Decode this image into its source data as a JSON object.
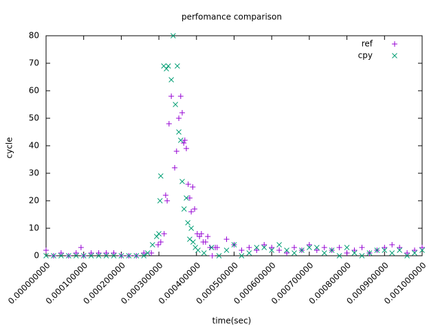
{
  "chart_data": {
    "type": "scatter",
    "title": "perfomance comparison",
    "x_label": "time(sec)",
    "y_label": "cycle",
    "legend": "upper right",
    "xlim": [
      0,
      0.001
    ],
    "xticks": [
      {
        "value": 0,
        "label": "0.000000000"
      },
      {
        "value": 0.0001,
        "label": "0.000100000"
      },
      {
        "value": 0.0002,
        "label": "0.000200000"
      },
      {
        "value": 0.0003,
        "label": "0.000300000"
      },
      {
        "value": 0.0004,
        "label": "0.000400000"
      },
      {
        "value": 0.0005,
        "label": "0.000500000"
      },
      {
        "value": 0.0006,
        "label": "0.000600000"
      },
      {
        "value": 0.0007,
        "label": "0.000700000"
      },
      {
        "value": 0.0008,
        "label": "0.000800000"
      },
      {
        "value": 0.0009,
        "label": "0.000900000"
      },
      {
        "value": 0.001,
        "label": "0.001000000"
      }
    ],
    "ylim": [
      0,
      80
    ],
    "yticks": [
      0,
      10,
      20,
      30,
      40,
      50,
      60,
      70,
      80
    ],
    "series": [
      {
        "name": "ref",
        "color": "#9400d3",
        "marker": "plus",
        "x": [
          0,
          2e-05,
          4e-05,
          6e-05,
          8e-05,
          9.3e-05,
          0.0001,
          0.00012,
          0.00014,
          0.00016,
          0.00018,
          0.0002,
          0.00022,
          0.00024,
          0.00026,
          0.00028,
          0.000298,
          0.000305,
          0.000314,
          0.000318,
          0.000322,
          0.000327,
          0.000333,
          0.000342,
          0.000347,
          0.000353,
          0.000358,
          0.000362,
          0.000366,
          0.000369,
          0.000373,
          0.000378,
          0.000382,
          0.000386,
          0.00039,
          0.000395,
          0.000402,
          0.000408,
          0.000413,
          0.000418,
          0.000424,
          0.00043,
          0.000436,
          0.000442,
          0.00045,
          0.000455,
          0.00048,
          0.0005,
          0.00052,
          0.00054,
          0.00056,
          0.00058,
          0.0006,
          0.00062,
          0.00064,
          0.00066,
          0.00068,
          0.0007,
          0.00072,
          0.00074,
          0.00076,
          0.00078,
          0.0008,
          0.00082,
          0.00084,
          0.00086,
          0.00088,
          0.0009,
          0.00092,
          0.00094,
          0.00096,
          0.00098,
          0.001
        ],
        "values": [
          2,
          0,
          1,
          0,
          1,
          3,
          0,
          1,
          1,
          1,
          1,
          0,
          0,
          0,
          1,
          1,
          4,
          5,
          8,
          22,
          20,
          48,
          58,
          32,
          38,
          50,
          58,
          52,
          41,
          42,
          39,
          26,
          21,
          16,
          25,
          17,
          8,
          7,
          8,
          5,
          5,
          7,
          3,
          0,
          3,
          3,
          6,
          4,
          2,
          3,
          2,
          4,
          3,
          2,
          1,
          3,
          2,
          4,
          2,
          3,
          2,
          3,
          1,
          2,
          3,
          1,
          2,
          3,
          4,
          3,
          1,
          2,
          3
        ]
      },
      {
        "name": "cpy",
        "color": "#009e73",
        "marker": "cross",
        "x": [
          0,
          2e-05,
          4e-05,
          6e-05,
          8e-05,
          0.0001,
          0.00012,
          0.00014,
          0.00016,
          0.00018,
          0.0002,
          0.00022,
          0.00024,
          0.00026,
          0.00027,
          0.000283,
          0.000294,
          0.0003,
          0.000303,
          0.000305,
          0.000313,
          0.00032,
          0.000325,
          0.000333,
          0.000338,
          0.000344,
          0.000349,
          0.000353,
          0.000358,
          0.000362,
          0.000367,
          0.000373,
          0.000377,
          0.000382,
          0.000386,
          0.000391,
          0.000397,
          0.000404,
          0.00042,
          0.00044,
          0.00046,
          0.00048,
          0.0005,
          0.00052,
          0.00054,
          0.00056,
          0.00058,
          0.0006,
          0.00062,
          0.00064,
          0.00066,
          0.00068,
          0.0007,
          0.00072,
          0.00074,
          0.00076,
          0.00078,
          0.0008,
          0.00082,
          0.00084,
          0.00086,
          0.00088,
          0.0009,
          0.00092,
          0.00094,
          0.00096,
          0.00098,
          0.001
        ],
        "values": [
          0,
          0,
          0,
          0,
          0,
          0,
          0,
          0,
          0,
          0,
          0,
          0,
          0,
          0,
          1,
          4,
          7,
          8,
          20,
          29,
          69,
          68,
          69,
          64,
          80,
          55,
          69,
          45,
          42,
          27,
          17,
          21,
          12,
          6,
          10,
          5,
          3,
          2,
          1,
          3,
          0,
          2,
          4,
          0,
          1,
          3,
          3,
          2,
          4,
          2,
          1,
          2,
          3,
          3,
          1,
          2,
          0,
          3,
          1,
          0,
          1,
          2,
          2,
          1,
          2,
          0,
          1,
          2
        ]
      }
    ]
  }
}
